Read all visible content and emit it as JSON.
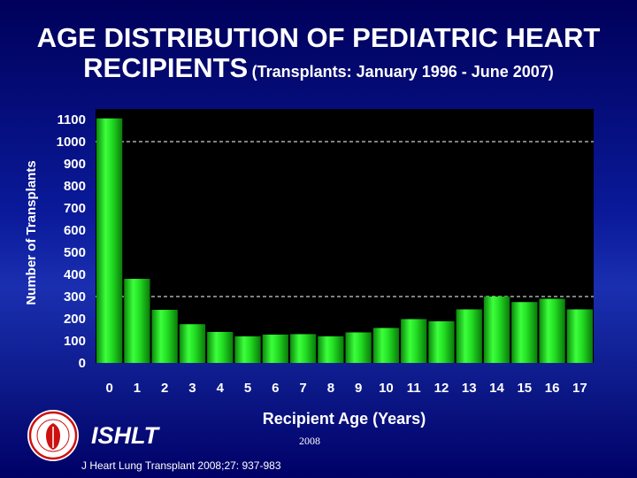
{
  "header": {
    "title_main": "AGE DISTRIBUTION OF PEDIATRIC HEART RECIPIENTS",
    "title_line1": "AGE DISTRIBUTION OF PEDIATRIC HEART",
    "title_line2": "RECIPIENTS",
    "subtitle": "(Transplants: January 1996 - June 2007)"
  },
  "footer": {
    "organization": "ISHLT",
    "year": "2008",
    "citation": "J Heart Lung Transplant 2008;27: 937-983"
  },
  "colors": {
    "bar": "#22dd22",
    "plot_background": "#000000",
    "gridline": "#ffffff",
    "text": "#ffffff"
  },
  "chart_data": {
    "type": "bar",
    "title": "AGE DISTRIBUTION OF PEDIATRIC HEART RECIPIENTS",
    "subtitle": "(Transplants: January 1996 - June 2007)",
    "xlabel": "Recipient Age (Years)",
    "ylabel": "Number of Transplants",
    "categories": [
      "0",
      "1",
      "2",
      "3",
      "4",
      "5",
      "6",
      "7",
      "8",
      "9",
      "10",
      "11",
      "12",
      "13",
      "14",
      "15",
      "16",
      "17"
    ],
    "values": [
      1105,
      380,
      240,
      175,
      140,
      120,
      128,
      130,
      120,
      138,
      158,
      198,
      188,
      242,
      300,
      275,
      290,
      242
    ],
    "ylim": [
      0,
      1100
    ],
    "yticks": [
      0,
      100,
      200,
      300,
      400,
      500,
      600,
      700,
      800,
      900,
      1000,
      1100
    ],
    "reference_lines": [
      1000,
      300
    ],
    "grid": false,
    "legend": "none"
  }
}
